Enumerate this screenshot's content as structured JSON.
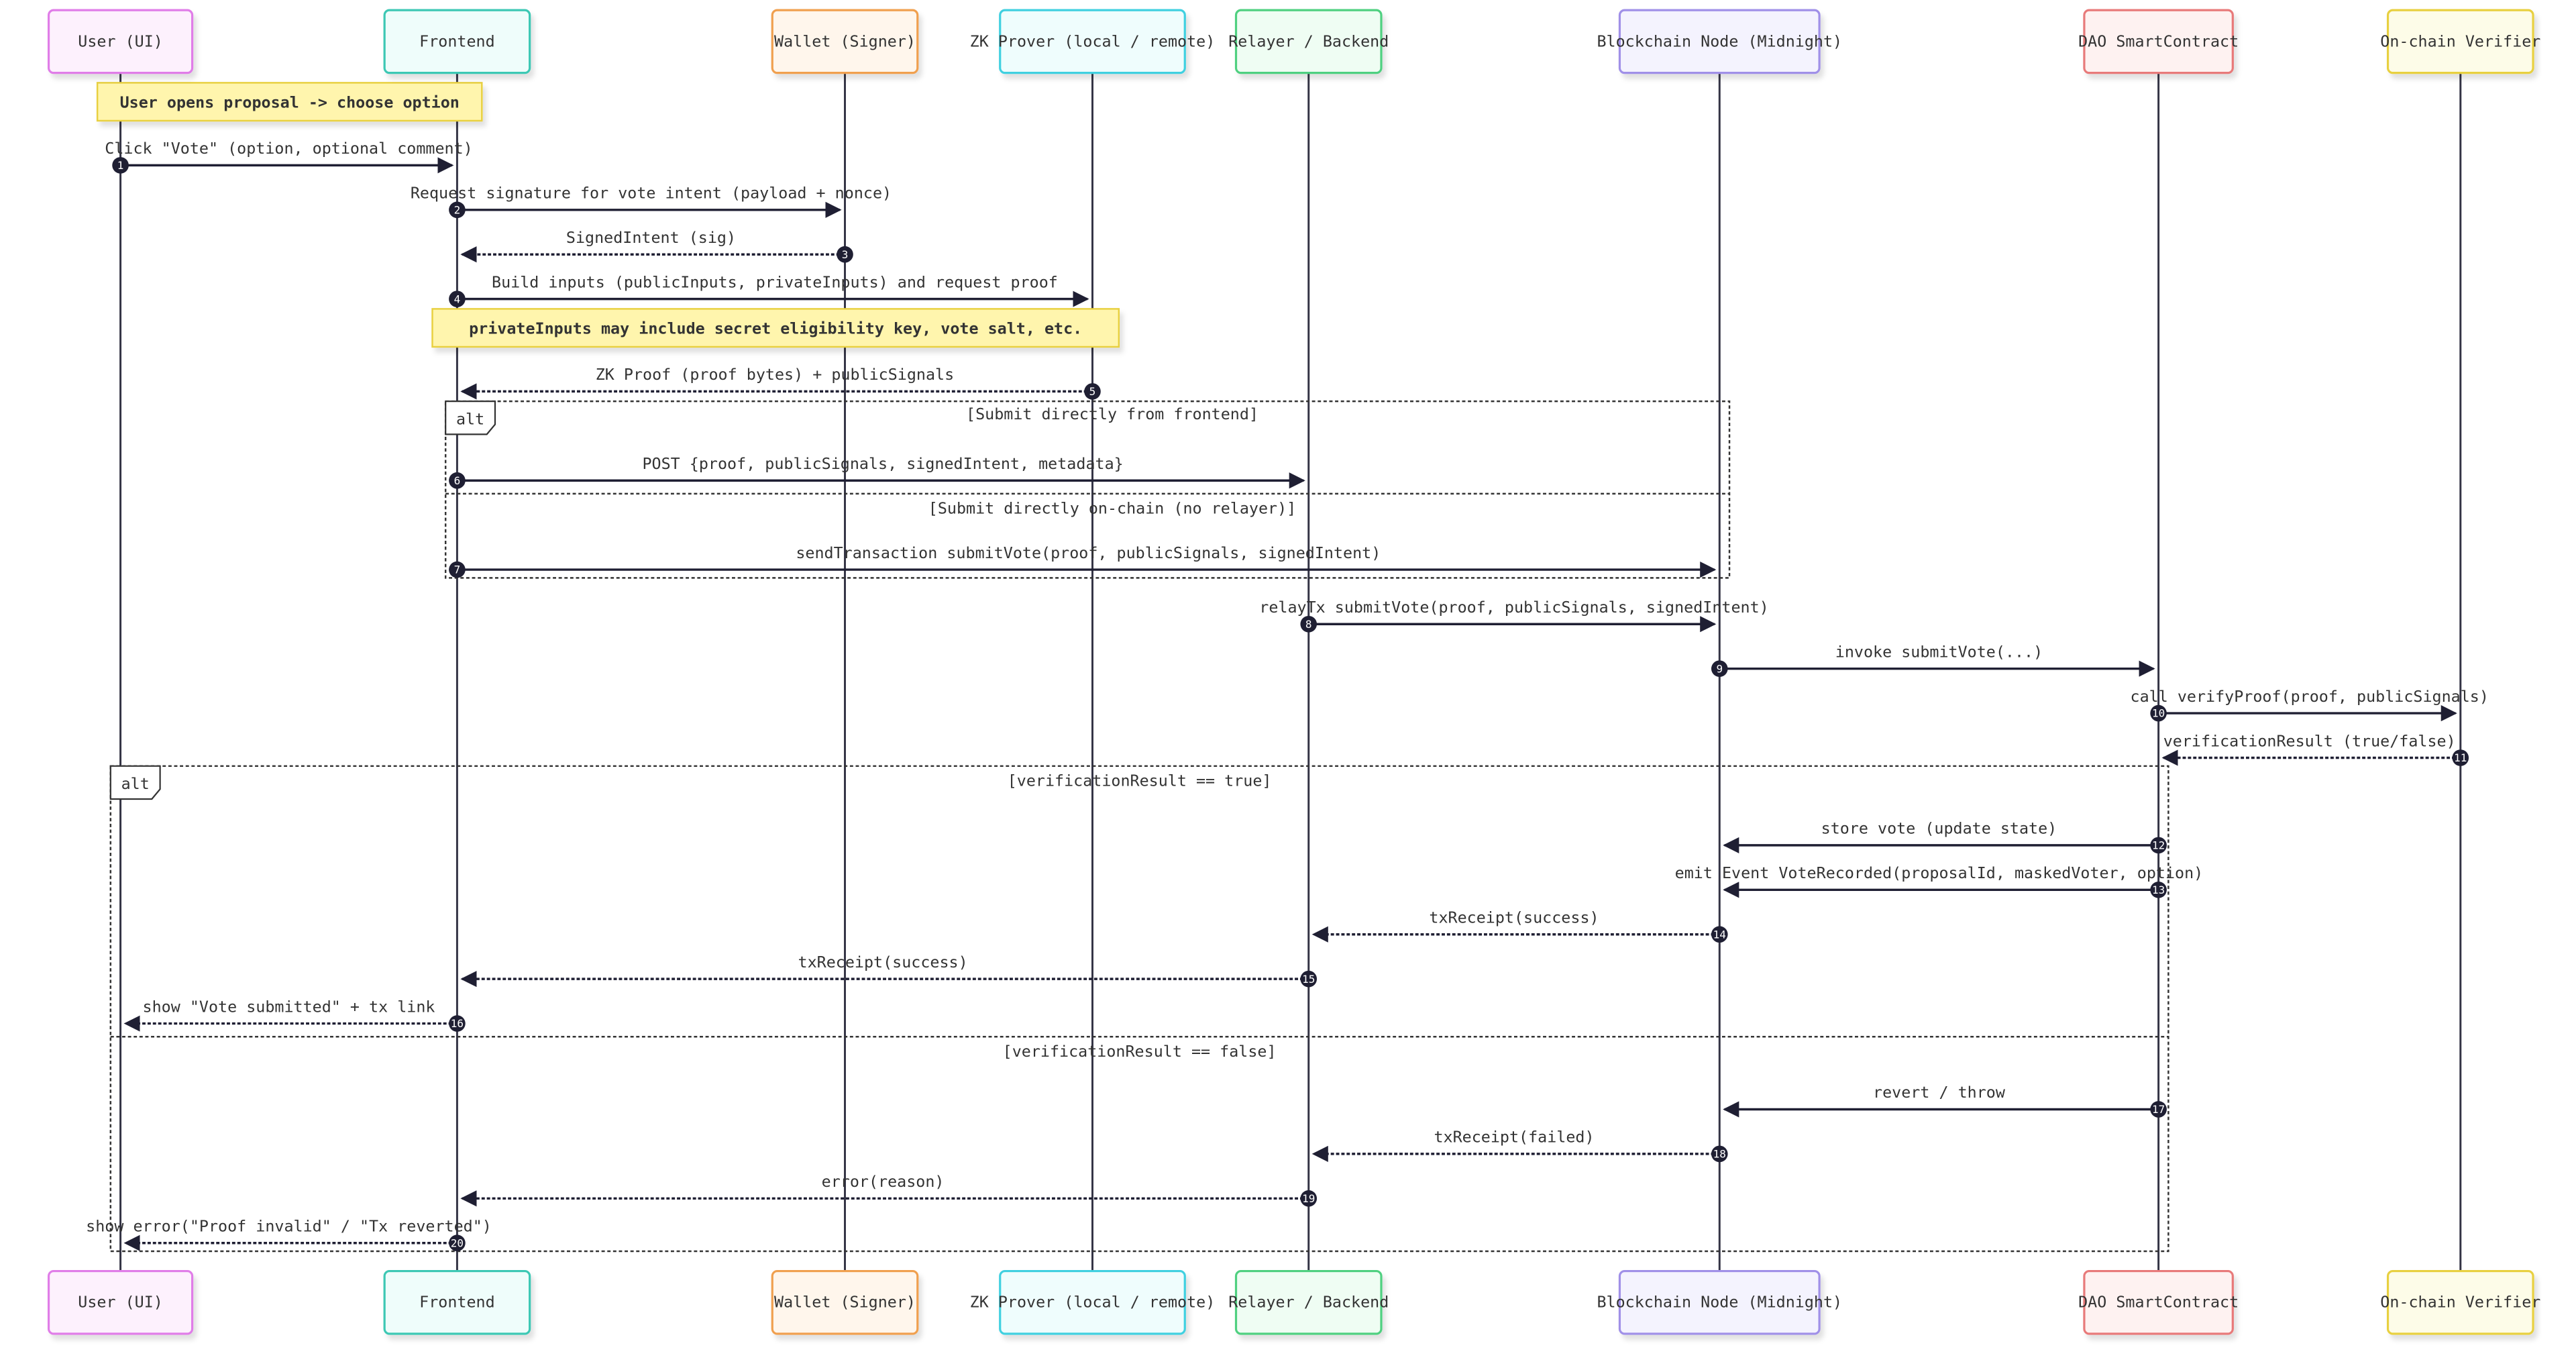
{
  "participants": [
    {
      "id": "user",
      "label": "User (UI)",
      "border": "#e07de8",
      "fill": "#fdf1fd"
    },
    {
      "id": "frontend",
      "label": "Frontend",
      "border": "#3cc8b4",
      "fill": "#effdfb"
    },
    {
      "id": "wallet",
      "label": "Wallet (Signer)",
      "border": "#f0a050",
      "fill": "#fff6ec"
    },
    {
      "id": "prover",
      "label": "ZK Prover (local / remote)",
      "border": "#40d0e0",
      "fill": "#effdfd"
    },
    {
      "id": "relayer",
      "label": "Relayer / Backend",
      "border": "#50d080",
      "fill": "#effdf3"
    },
    {
      "id": "node",
      "label": "Blockchain Node (Midnight)",
      "border": "#a090e8",
      "fill": "#f4f3fe"
    },
    {
      "id": "dao",
      "label": "DAO SmartContract",
      "border": "#e87a7a",
      "fill": "#fef2f1"
    },
    {
      "id": "verifier",
      "label": "On-chain Verifier",
      "border": "#e8d040",
      "fill": "#fdfce8"
    }
  ],
  "notes": [
    {
      "text": "User opens proposal -> choose option",
      "from": "user",
      "to": "frontend"
    },
    {
      "text": "privateInputs may include secret eligibility key, vote salt, etc.",
      "from": "frontend",
      "to": "prover"
    }
  ],
  "messages": [
    {
      "n": "1",
      "from": "user",
      "to": "frontend",
      "label": "Click \"Vote\" (option, optional comment)",
      "dashed": false
    },
    {
      "n": "2",
      "from": "frontend",
      "to": "wallet",
      "label": "Request signature for vote intent (payload + nonce)",
      "dashed": false
    },
    {
      "n": "3",
      "from": "wallet",
      "to": "frontend",
      "label": "SignedIntent (sig)",
      "dashed": true
    },
    {
      "n": "4",
      "from": "frontend",
      "to": "prover",
      "label": "Build inputs (publicInputs, privateInputs) and request proof",
      "dashed": false
    },
    {
      "n": "5",
      "from": "prover",
      "to": "frontend",
      "label": "ZK Proof (proof bytes) + publicSignals",
      "dashed": true
    },
    {
      "n": "6",
      "from": "frontend",
      "to": "relayer",
      "label": "POST {proof, publicSignals, signedIntent, metadata}",
      "dashed": false
    },
    {
      "n": "7",
      "from": "frontend",
      "to": "node",
      "label": "sendTransaction submitVote(proof, publicSignals, signedIntent)",
      "dashed": false
    },
    {
      "n": "8",
      "from": "relayer",
      "to": "node",
      "label": "relayTx submitVote(proof, publicSignals, signedIntent)",
      "dashed": false
    },
    {
      "n": "9",
      "from": "node",
      "to": "dao",
      "label": "invoke submitVote(...)",
      "dashed": false
    },
    {
      "n": "10",
      "from": "dao",
      "to": "verifier",
      "label": "call verifyProof(proof, publicSignals)",
      "dashed": false
    },
    {
      "n": "11",
      "from": "verifier",
      "to": "dao",
      "label": "verificationResult (true/false)",
      "dashed": true
    },
    {
      "n": "12",
      "from": "dao",
      "to": "node",
      "label": "store vote (update state)",
      "dashed": false
    },
    {
      "n": "13",
      "from": "dao",
      "to": "node",
      "label": "emit Event VoteRecorded(proposalId, maskedVoter, option)",
      "dashed": false
    },
    {
      "n": "14",
      "from": "node",
      "to": "relayer",
      "label": "txReceipt(success)",
      "dashed": true
    },
    {
      "n": "15",
      "from": "relayer",
      "to": "frontend",
      "label": "txReceipt(success)",
      "dashed": true
    },
    {
      "n": "16",
      "from": "frontend",
      "to": "user",
      "label": "show \"Vote submitted\" + tx link",
      "dashed": true
    },
    {
      "n": "17",
      "from": "dao",
      "to": "node",
      "label": "revert / throw",
      "dashed": false
    },
    {
      "n": "18",
      "from": "node",
      "to": "relayer",
      "label": "txReceipt(failed)",
      "dashed": true
    },
    {
      "n": "19",
      "from": "relayer",
      "to": "frontend",
      "label": "error(reason)",
      "dashed": true
    },
    {
      "n": "20",
      "from": "frontend",
      "to": "user",
      "label": "show error(\"Proof invalid\" / \"Tx reverted\")",
      "dashed": true
    }
  ],
  "alt_blocks": [
    {
      "label": "alt",
      "conditions": [
        "[Submit directly from frontend]",
        "[Submit directly on-chain (no relayer)]"
      ]
    },
    {
      "label": "alt",
      "conditions": [
        "[verificationResult == true]",
        "[verificationResult == false]"
      ]
    }
  ],
  "colors": {
    "line": "#333344",
    "marker": "#1f1f33",
    "note_fill": "#fff5ad",
    "note_border": "#e8d040"
  }
}
